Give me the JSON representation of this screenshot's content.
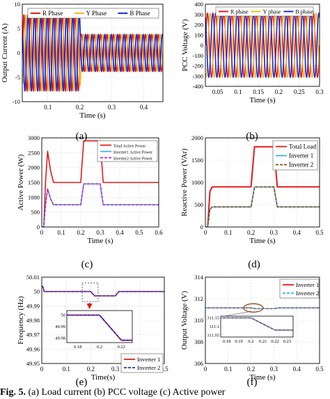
{
  "panels": {
    "a": {
      "label": "(a)",
      "xlabel": "Time (s)",
      "ylabel": "Output Current (A)",
      "xticks": [
        "0.1",
        "0.2",
        "0.3",
        "0.4"
      ],
      "yticks": [
        "10",
        "5",
        "0",
        "-5",
        "-10"
      ],
      "legend": [
        "R Phase",
        "Y Phase",
        "B Phase"
      ]
    },
    "b": {
      "label": "(b)",
      "xlabel": "Time (s)",
      "ylabel": "PCC Voltage (V)",
      "xticks": [
        "0.05",
        "0.1",
        "0.15",
        "0.2",
        "0.25",
        "0.3"
      ],
      "yticks": [
        "400",
        "300",
        "200",
        "100",
        "0",
        "-100",
        "-200",
        "-300",
        "-400"
      ],
      "legend": [
        "R phase",
        "Y phase",
        "B phase"
      ]
    },
    "c": {
      "label": "(c)",
      "xlabel": "Time (s)",
      "ylabel": "Active Power (W)",
      "xticks": [
        "0",
        "0.1",
        "0.2",
        "0.3",
        "0.4",
        "0.5",
        "0.6"
      ],
      "yticks": [
        "3000",
        "2500",
        "2000",
        "1500",
        "1000",
        "500",
        "0"
      ],
      "legend": [
        "Total Active Power",
        "Inverter1 Active Power",
        "Inverter2 Active Power"
      ]
    },
    "d": {
      "label": "(d)",
      "xlabel": "Time (s)",
      "ylabel": "Reactive Power (VAr)",
      "xticks": [
        "0",
        "0.1",
        "0.2",
        "0.3",
        "0.4",
        "0.5"
      ],
      "yticks": [
        "2000",
        "1500",
        "1000",
        "500",
        "0"
      ],
      "legend": [
        "Total Load",
        "Inverter 1",
        "Inverter 2"
      ]
    },
    "e": {
      "label": "(e)",
      "xlabel": "Time(s)",
      "ylabel": "Frequency (Hz)",
      "xticks": [
        "0",
        "0.1",
        "0.2",
        "0.3",
        "0.4",
        "0.5"
      ],
      "yticks": [
        "50.01",
        "50",
        "49.99",
        "49.98",
        "49.97",
        "49.96",
        "49.95"
      ],
      "legend": [
        "Inverter 1",
        "Inverter 2"
      ],
      "inset": {
        "xticks": [
          "0.18",
          "0.2",
          "0.22"
        ],
        "yticks": [
          "50",
          "49.99",
          "49.98"
        ]
      }
    },
    "f": {
      "label": "(f)",
      "xlabel": "Time (s)",
      "ylabel": "Output Voltage (V)",
      "xticks": [
        "0",
        "0.1",
        "0.2",
        "0.3",
        "0.4",
        "0.5"
      ],
      "yticks": [
        "314",
        "312",
        "310",
        "308",
        "306"
      ],
      "legend": [
        "Inverter 1",
        "Inverter 2"
      ],
      "inset": {
        "xticks": [
          "0.18",
          "0.19",
          "0.2",
          "0.21",
          "0.22",
          "0.23"
        ],
        "yticks": [
          "311.15",
          "311.1",
          "311.05"
        ]
      }
    }
  },
  "caption": {
    "bold": "Fig. 5.",
    "text": " (a) Load current (b) PCC voltage (c) Active power"
  },
  "colors": {
    "red": "#e41a1c",
    "yellow": "#f2b824",
    "blue": "#1f2fd6",
    "cyan": "#39b5e0",
    "brown": "#8b4513",
    "magenta": "#c020c0",
    "purple": "#3a2bd0"
  },
  "chart_data": [
    {
      "panel": "a",
      "type": "line",
      "xlim": [
        0.02,
        0.46
      ],
      "ylim": [
        -10,
        10
      ],
      "series": [
        {
          "name": "R Phase",
          "kind": "sine",
          "freq": 50,
          "phase": 0,
          "amp": [
            [
              0.02,
              3.8
            ],
            [
              0.2,
              7.8
            ],
            [
              0.3,
              3.8
            ],
            [
              0.46,
              3.8
            ]
          ]
        },
        {
          "name": "Y Phase",
          "kind": "sine",
          "freq": 50,
          "phase": -2.094,
          "amp": [
            [
              0.02,
              3.8
            ],
            [
              0.2,
              7.8
            ],
            [
              0.3,
              3.8
            ],
            [
              0.46,
              3.8
            ]
          ]
        },
        {
          "name": "B Phase",
          "kind": "sine",
          "freq": 50,
          "phase": 2.094,
          "amp": [
            [
              0.02,
              3.8
            ],
            [
              0.2,
              7.8
            ],
            [
              0.3,
              3.8
            ],
            [
              0.46,
              3.8
            ]
          ]
        }
      ]
    },
    {
      "panel": "b",
      "type": "line",
      "xlim": [
        0.02,
        0.3
      ],
      "ylim": [
        -400,
        400
      ],
      "series": [
        {
          "name": "R phase",
          "kind": "sine",
          "freq": 50,
          "phase": 0,
          "amp": [
            [
              0.02,
              312
            ],
            [
              0.3,
              312
            ]
          ]
        },
        {
          "name": "Y phase",
          "kind": "sine",
          "freq": 50,
          "phase": -2.094,
          "amp": [
            [
              0.02,
              312
            ],
            [
              0.3,
              312
            ]
          ]
        },
        {
          "name": "B phase",
          "kind": "sine",
          "freq": 50,
          "phase": 2.094,
          "amp": [
            [
              0.02,
              312
            ],
            [
              0.3,
              312
            ]
          ]
        }
      ]
    },
    {
      "panel": "c",
      "type": "line",
      "xlim": [
        0,
        0.6
      ],
      "ylim": [
        0,
        3000
      ],
      "series": [
        {
          "name": "Total Active Power",
          "points": [
            [
              0,
              0
            ],
            [
              0.01,
              0
            ],
            [
              0.02,
              1600
            ],
            [
              0.03,
              2550
            ],
            [
              0.045,
              1900
            ],
            [
              0.06,
              1500
            ],
            [
              0.2,
              1500
            ],
            [
              0.215,
              2900
            ],
            [
              0.3,
              2900
            ],
            [
              0.315,
              1500
            ],
            [
              0.6,
              1500
            ]
          ]
        },
        {
          "name": "Inverter1 Active Power",
          "points": [
            [
              0,
              0
            ],
            [
              0.01,
              0
            ],
            [
              0.02,
              800
            ],
            [
              0.03,
              1280
            ],
            [
              0.045,
              950
            ],
            [
              0.06,
              750
            ],
            [
              0.2,
              750
            ],
            [
              0.215,
              1450
            ],
            [
              0.3,
              1450
            ],
            [
              0.315,
              750
            ],
            [
              0.6,
              750
            ]
          ]
        },
        {
          "name": "Inverter2 Active Power",
          "points": [
            [
              0,
              0
            ],
            [
              0.01,
              0
            ],
            [
              0.02,
              800
            ],
            [
              0.03,
              1280
            ],
            [
              0.045,
              950
            ],
            [
              0.06,
              750
            ],
            [
              0.2,
              750
            ],
            [
              0.215,
              1450
            ],
            [
              0.3,
              1450
            ],
            [
              0.315,
              750
            ],
            [
              0.6,
              750
            ]
          ]
        }
      ]
    },
    {
      "panel": "d",
      "type": "line",
      "xlim": [
        0,
        0.5
      ],
      "ylim": [
        0,
        2000
      ],
      "series": [
        {
          "name": "Total Load",
          "points": [
            [
              0,
              0
            ],
            [
              0.01,
              0
            ],
            [
              0.02,
              800
            ],
            [
              0.03,
              900
            ],
            [
              0.2,
              900
            ],
            [
              0.215,
              1800
            ],
            [
              0.3,
              1800
            ],
            [
              0.315,
              900
            ],
            [
              0.5,
              900
            ]
          ]
        },
        {
          "name": "Inverter 1",
          "points": [
            [
              0,
              0
            ],
            [
              0.01,
              0
            ],
            [
              0.02,
              400
            ],
            [
              0.03,
              450
            ],
            [
              0.2,
              450
            ],
            [
              0.215,
              900
            ],
            [
              0.3,
              900
            ],
            [
              0.315,
              450
            ],
            [
              0.5,
              450
            ]
          ]
        },
        {
          "name": "Inverter 2",
          "points": [
            [
              0,
              0
            ],
            [
              0.01,
              0
            ],
            [
              0.02,
              400
            ],
            [
              0.03,
              450
            ],
            [
              0.2,
              450
            ],
            [
              0.215,
              900
            ],
            [
              0.3,
              900
            ],
            [
              0.315,
              450
            ],
            [
              0.5,
              450
            ]
          ]
        }
      ]
    },
    {
      "panel": "e",
      "type": "line",
      "xlim": [
        0,
        0.5
      ],
      "ylim": [
        49.95,
        50.01
      ],
      "series": [
        {
          "name": "Inverter 1",
          "points": [
            [
              0,
              50.004
            ],
            [
              0.005,
              50.003
            ],
            [
              0.01,
              50.0
            ],
            [
              0.2,
              50.0
            ],
            [
              0.215,
              49.997
            ],
            [
              0.3,
              49.997
            ],
            [
              0.315,
              50.0
            ],
            [
              0.5,
              50.0
            ]
          ]
        },
        {
          "name": "Inverter 2",
          "points": [
            [
              0,
              50.004
            ],
            [
              0.005,
              50.003
            ],
            [
              0.01,
              50.0
            ],
            [
              0.2,
              50.0
            ],
            [
              0.215,
              49.997
            ],
            [
              0.3,
              49.997
            ],
            [
              0.315,
              50.0
            ],
            [
              0.5,
              50.0
            ]
          ]
        }
      ]
    },
    {
      "panel": "f",
      "type": "line",
      "xlim": [
        0,
        0.5
      ],
      "ylim": [
        306,
        314
      ],
      "series": [
        {
          "name": "Inverter 1",
          "points": [
            [
              0,
              311.15
            ],
            [
              0.2,
              311.15
            ],
            [
              0.22,
              311.08
            ],
            [
              0.3,
              311.08
            ],
            [
              0.32,
              311.15
            ],
            [
              0.5,
              311.15
            ]
          ]
        },
        {
          "name": "Inverter 2",
          "points": [
            [
              0,
              311.15
            ],
            [
              0.2,
              311.15
            ],
            [
              0.22,
              311.08
            ],
            [
              0.3,
              311.08
            ],
            [
              0.32,
              311.15
            ],
            [
              0.5,
              311.15
            ]
          ]
        }
      ]
    }
  ]
}
